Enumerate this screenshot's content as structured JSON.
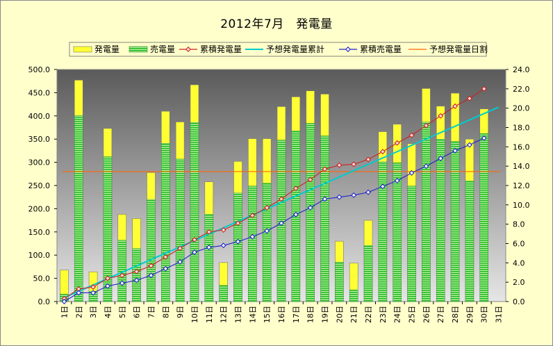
{
  "chart_data": {
    "type": "bar",
    "title": "2012年7月　発電量",
    "categories": [
      "1日",
      "2日",
      "3日",
      "4日",
      "5日",
      "6日",
      "7日",
      "8日",
      "9日",
      "10日",
      "11日",
      "12日",
      "13日",
      "14日",
      "15日",
      "16日",
      "17日",
      "18日",
      "19日",
      "20日",
      "21日",
      "22日",
      "23日",
      "24日",
      "25日",
      "26日",
      "27日",
      "28日",
      "29日",
      "30日",
      "31日"
    ],
    "ylim": [
      0,
      500
    ],
    "y2lim": [
      0,
      24
    ],
    "yticks": [
      "0.0",
      "50.0",
      "100.0",
      "150.0",
      "200.0",
      "250.0",
      "300.0",
      "350.0",
      "400.0",
      "450.0",
      "500.0"
    ],
    "y2ticks": [
      "0.0",
      "2.0",
      "4.0",
      "6.0",
      "8.0",
      "10.0",
      "12.0",
      "14.0",
      "16.0",
      "18.0",
      "20.0",
      "22.0",
      "24.0"
    ],
    "legend_position": "top",
    "series": [
      {
        "name": "発電量",
        "axis": "left",
        "type": "bar",
        "color": "#ffff33",
        "values": [
          68,
          477,
          64,
          373,
          188,
          179,
          278,
          410,
          387,
          467,
          258,
          84,
          302,
          351,
          351,
          420,
          441,
          454,
          447,
          130,
          83,
          175,
          366,
          382,
          340,
          459,
          421,
          449,
          350,
          415,
          null
        ]
      },
      {
        "name": "売電量",
        "axis": "left",
        "type": "bar",
        "color": "#33cc33",
        "values": [
          16,
          401,
          22,
          312,
          132,
          114,
          220,
          341,
          307,
          386,
          188,
          35,
          234,
          249,
          255,
          348,
          368,
          384,
          357,
          85,
          25,
          121,
          301,
          299,
          249,
          387,
          350,
          345,
          260,
          362,
          null
        ]
      },
      {
        "name": "累積発電量",
        "axis": "right",
        "type": "line",
        "color": "#cc2222",
        "values": [
          0.3,
          1.3,
          1.5,
          2.4,
          2.7,
          3.1,
          3.7,
          4.6,
          5.5,
          6.4,
          7.2,
          7.4,
          8.1,
          8.9,
          9.7,
          10.6,
          11.7,
          12.6,
          13.7,
          14.1,
          14.2,
          14.7,
          15.5,
          16.4,
          17.2,
          18.2,
          19.2,
          20.2,
          21.0,
          22.0,
          null
        ]
      },
      {
        "name": "予想発電量累計",
        "axis": "right",
        "type": "line",
        "color": "#00cccc",
        "start": 0.4,
        "end": 20.1
      },
      {
        "name": "累積売電量",
        "axis": "right",
        "type": "line",
        "color": "#2222cc",
        "values": [
          0.0,
          0.9,
          0.9,
          1.6,
          1.9,
          2.2,
          2.7,
          3.4,
          4.1,
          5.1,
          5.6,
          5.8,
          6.2,
          6.7,
          7.3,
          8.1,
          9.0,
          9.7,
          10.6,
          10.8,
          11.0,
          11.3,
          11.9,
          12.5,
          13.3,
          14.0,
          14.8,
          15.6,
          16.2,
          16.9,
          null
        ]
      },
      {
        "name": "予想発電量日割",
        "axis": "left",
        "type": "hline",
        "color": "#ff6600",
        "value": 280
      }
    ]
  }
}
